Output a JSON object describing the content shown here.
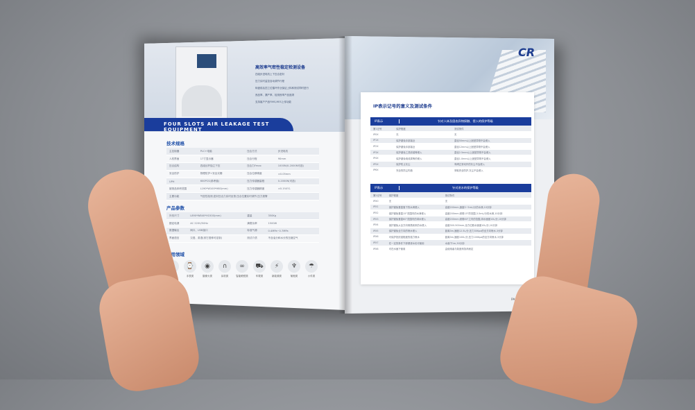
{
  "left_page": {
    "hero_title": "高效率气密性稳定检测设备",
    "hero_bullets": [
      "四组步进电机上下压合密封",
      "压力实时监控自动调节行程",
      "转盘前后四工位循环作业保证上料和测试同时进行",
      "良品率、漏产率、检测良率产品追溯",
      "支持客户产品FIMS,MES上传功能"
    ],
    "banner": "FOUR SLOTS AIR LEAKAGE TEST EQUIPMENT",
    "spec_title": "技术规格",
    "spec_rows": [
      [
        "主控制器",
        "PLC+电脑",
        "压合方式",
        "步进电机"
      ],
      [
        "人机界面",
        "17寸显示器",
        "压合行程",
        "90mm"
      ],
      [
        "压合结构",
        "四组丝杆独立下压",
        "压合力Fmax",
        "1000N(0-2000N可选)"
      ],
      [
        "安全防护",
        "物理防护+安全光栅",
        "压合位移精度",
        "±0.05mm"
      ],
      [
        "UPH",
        "600PCS(参考值)",
        "压力传感器量程",
        "0-2000N(可选)"
      ],
      [
        "被测品体积范围",
        "L190*W100*H80(mm)",
        "压力传感器精度",
        "±0.1%F.S."
      ],
      [
        "主要功能",
        "气密性检测,密封压合力实时反馈,压合位置实时调节,压力报警",
        "",
        ""
      ]
    ],
    "param_title": "产品参数",
    "param_rows": [
      [
        "外形尺寸",
        "L890*W840*H1500(mm)",
        "重量",
        "350Kg"
      ],
      [
        "额定电源",
        "AC 220V/50Hz",
        "满载功率",
        "1500W"
      ],
      [
        "数据输出",
        "网口、USB接口",
        "标准气源",
        "0.4MPa~0.7MPa"
      ],
      [
        "界面语言",
        "汉语、英语(其它语种可定制)",
        "测试介质",
        "不含油分和水分的压缩空气"
      ]
    ],
    "app_title": "适用领域",
    "applications": [
      {
        "icon": "phone-icon",
        "glyph": "▯",
        "label": "手机类"
      },
      {
        "icon": "watch-icon",
        "glyph": "⌚",
        "label": "手表类"
      },
      {
        "icon": "camera-icon",
        "glyph": "◉",
        "label": "摄像头类"
      },
      {
        "icon": "headphone-icon",
        "glyph": "∩",
        "label": "耳机类"
      },
      {
        "icon": "glasses-icon",
        "glyph": "∞",
        "label": "智能眼镜类"
      },
      {
        "icon": "car-icon",
        "glyph": "⛟",
        "label": "车载类"
      },
      {
        "icon": "charger-icon",
        "glyph": "⚡",
        "label": "新能源类"
      },
      {
        "icon": "wine-icon",
        "glyph": "♆",
        "label": "葡萄类"
      },
      {
        "icon": "lamp-icon",
        "glyph": "☂",
        "label": "小件类"
      }
    ]
  },
  "right_page": {
    "logo": "CR",
    "title": "IP表示记号的意义及测试条件",
    "table1": {
      "col1": "IP表示",
      "head": "针对人体及固态异物接触、侵入的保护等级",
      "rows": [
        [
          "第1记号",
          "保护程度",
          "测试条件"
        ],
        [
          "IP0X",
          "无",
          "无"
        ],
        [
          "IP1X",
          "保护避免手部接近",
          "直径50mm以上固型异物不会侵入"
        ],
        [
          "IP2X",
          "保护避免手部接近",
          "直径12mm以上固型异物不会侵入"
        ],
        [
          "IP3X",
          "保护避免工具前端等侵入",
          "直径2.5mm以上固型异物不会侵入"
        ],
        [
          "IP4X",
          "保护避免电线类等的侵入",
          "直径1.0mm以上固型异物不会侵入"
        ],
        [
          "IP5X",
          "保护防止灰尘",
          "有碍正常动作的灰尘不会侵入"
        ],
        [
          "IP6X",
          "完全的防尘构造",
          "采取完全防护,灰尘不会侵入"
        ]
      ]
    },
    "table2": {
      "col1": "IP表示",
      "head": "针对进水的保护等级",
      "rows": [
        [
          "第2记号",
          "保护程度",
          "测试条件"
        ],
        [
          "IPX0",
          "无",
          "无"
        ],
        [
          "IPX1",
          "保护避免垂直落下的水滴侵入",
          "高度200mm,速度3~5mL/分的水滴,10分钟"
        ],
        [
          "IPX2",
          "保护避免垂直15°范围内的水滴侵入",
          "高度200mm,倾角15°的范围,3-5mL/分的水滴,10分钟"
        ],
        [
          "IPX3",
          "保护避免垂直60°范围内的淋水侵入",
          "高度200mm,倾角60°之内的范围,淋水速度10L/分,10分钟"
        ],
        [
          "IPX4",
          "保护避免从全方向喷溅而来的水侵入",
          "高度300-500mm,全方位散水速度10L/分,10分钟"
        ],
        [
          "IPX5",
          "保护避免全方向的喷水侵入",
          "距离3m,速度12.5L/分,压力30Kpa的全方向喷水,3分钟"
        ],
        [
          "IPX6",
          "可保护抵抗强程度的强力喷水",
          "距离3m,速度100L/分,压力100Kpa的全方向喷水,3分钟"
        ],
        [
          "IPX7",
          "在一定的条件下即便浸水也可使用",
          "水面下1m,30分钟"
        ],
        [
          "IPX8",
          "可在水面下使用",
          "由使用者与制造商协商而定"
        ]
      ]
    },
    "page_number": "PAGE 13/14"
  },
  "colors": {
    "brand_blue": "#1a3d9c",
    "background": "#8b8e93"
  }
}
